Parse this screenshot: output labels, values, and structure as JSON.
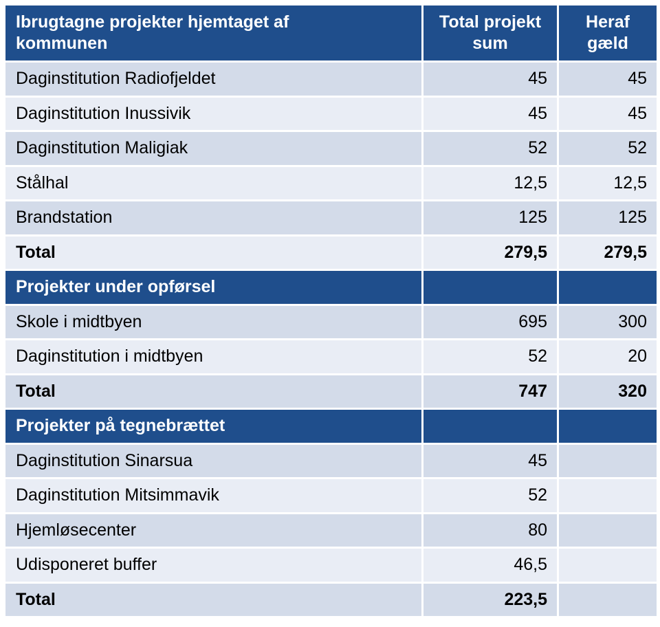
{
  "header": {
    "col1": "Ibrugtagne projekter hjemtaget af\nkommunen",
    "col2": "Total projekt\nsum",
    "col3": "Heraf\ngæld"
  },
  "section1": {
    "rows": [
      {
        "name": "Daginstitution Radiofjeldet",
        "total": "45",
        "debt": "45"
      },
      {
        "name": "Daginstitution Inussivik",
        "total": "45",
        "debt": "45"
      },
      {
        "name": "Daginstitution Maligiak",
        "total": "52",
        "debt": "52"
      },
      {
        "name": "Stålhal",
        "total": "12,5",
        "debt": "12,5"
      },
      {
        "name": "Brandstation",
        "total": "125",
        "debt": "125"
      }
    ],
    "total": {
      "name": "Total",
      "total": "279,5",
      "debt": "279,5"
    }
  },
  "section2": {
    "title": "Projekter under opførsel",
    "rows": [
      {
        "name": "Skole i midtbyen",
        "total": "695",
        "debt": "300"
      },
      {
        "name": "Daginstitution i midtbyen",
        "total": "52",
        "debt": "20"
      }
    ],
    "total": {
      "name": "Total",
      "total": "747",
      "debt": "320"
    }
  },
  "section3": {
    "title": "Projekter på tegnebrættet",
    "rows": [
      {
        "name": "Daginstitution Sinarsua",
        "total": "45",
        "debt": ""
      },
      {
        "name": "Daginstitution Mitsimmavik",
        "total": "52",
        "debt": ""
      },
      {
        "name": "Hjemløsecenter",
        "total": "80",
        "debt": ""
      },
      {
        "name": "Udisponeret buffer",
        "total": "46,5",
        "debt": ""
      }
    ],
    "total": {
      "name": "Total",
      "total": "223,5",
      "debt": ""
    }
  },
  "colors": {
    "header_bg": "#1f4e8c",
    "row_dark": "#d3dbe9",
    "row_light": "#e9edf5"
  }
}
